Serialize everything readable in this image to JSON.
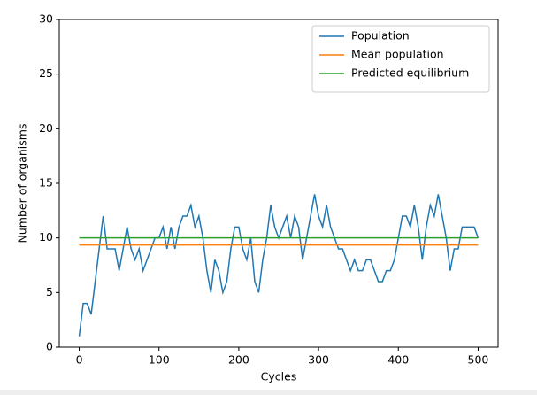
{
  "chart_data": {
    "type": "line",
    "x_label": "Cycles",
    "y_label": "Number of organisms",
    "xlim": [
      -25,
      525
    ],
    "ylim": [
      0,
      30
    ],
    "xticks": [
      0,
      100,
      200,
      300,
      400,
      500
    ],
    "yticks": [
      0,
      5,
      10,
      15,
      20,
      25,
      30
    ],
    "legend": "upper right",
    "series": [
      {
        "name": "Population",
        "color": "#1f77b4",
        "x": [
          0,
          5,
          10,
          15,
          20,
          25,
          30,
          35,
          40,
          45,
          50,
          55,
          60,
          65,
          70,
          75,
          80,
          85,
          90,
          95,
          100,
          105,
          110,
          115,
          120,
          125,
          130,
          135,
          140,
          145,
          150,
          155,
          160,
          165,
          170,
          175,
          180,
          185,
          190,
          195,
          200,
          205,
          210,
          215,
          220,
          225,
          230,
          235,
          240,
          245,
          250,
          255,
          260,
          265,
          270,
          275,
          280,
          285,
          290,
          295,
          300,
          305,
          310,
          315,
          320,
          325,
          330,
          335,
          340,
          345,
          350,
          355,
          360,
          365,
          370,
          375,
          380,
          385,
          390,
          395,
          400,
          405,
          410,
          415,
          420,
          425,
          430,
          435,
          440,
          445,
          450,
          455,
          460,
          465,
          470,
          475,
          480,
          485,
          490,
          495,
          500
        ],
        "values": [
          1,
          4,
          4,
          3,
          6,
          9,
          12,
          9,
          9,
          9,
          7,
          9,
          11,
          9,
          8,
          9,
          7,
          8,
          9,
          10,
          10,
          11,
          9,
          11,
          9,
          11,
          12,
          12,
          13,
          11,
          12,
          10,
          7,
          5,
          8,
          7,
          5,
          6,
          9,
          11,
          11,
          9,
          8,
          10,
          6,
          5,
          8,
          10,
          13,
          11,
          10,
          11,
          12,
          10,
          12,
          11,
          8,
          10,
          12,
          14,
          12,
          11,
          13,
          11,
          10,
          9,
          9,
          8,
          7,
          8,
          7,
          7,
          8,
          8,
          7,
          6,
          6,
          7,
          7,
          8,
          10,
          12,
          12,
          11,
          13,
          11,
          8,
          11,
          13,
          12,
          14,
          12,
          10,
          7,
          9,
          9,
          11,
          11,
          11,
          11,
          10
        ]
      },
      {
        "name": "Mean population",
        "color": "#ff7f0e",
        "x": [
          0,
          500
        ],
        "values": [
          9.35,
          9.35
        ]
      },
      {
        "name": "Predicted equilibrium",
        "color": "#2ca02c",
        "x": [
          0,
          500
        ],
        "values": [
          10,
          10
        ]
      }
    ]
  }
}
